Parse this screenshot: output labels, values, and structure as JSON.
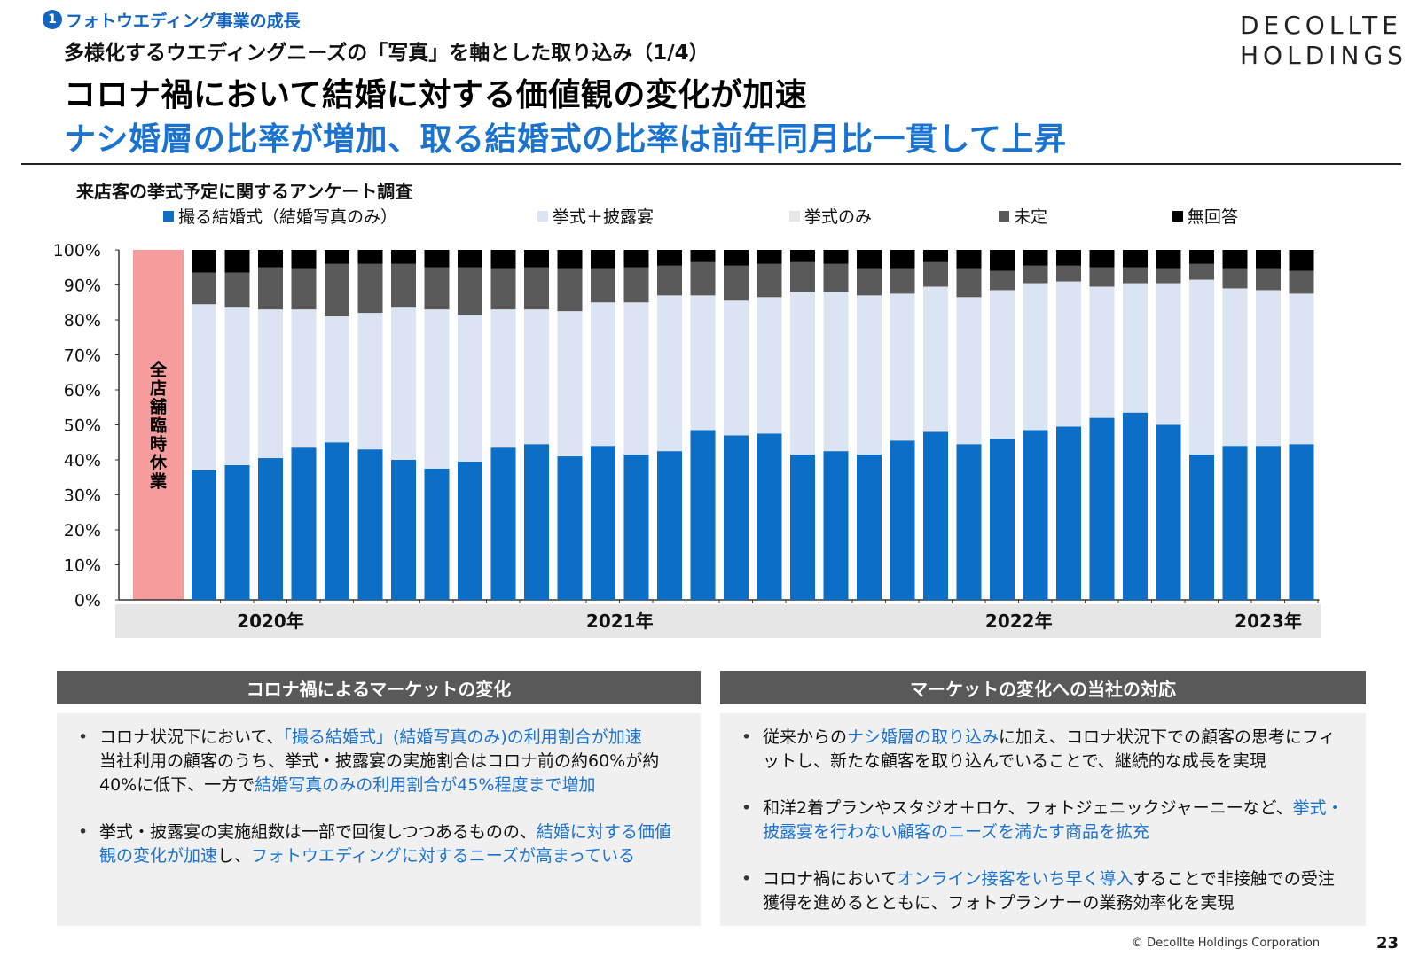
{
  "header": {
    "section_number": "1",
    "section_label": "フォトウエディング事業の成長",
    "subtitle": "多様化するウエディングニーズの「写真」を軸とした取り込み（1/4）",
    "headline": "コロナ禍において結婚に対する価値観の変化が加速",
    "headline_sub": "ナシ婚層の比率が増加、取る結婚式の比率は前年同月比一貫して上昇",
    "logo_line1": "DECOLLTE",
    "logo_line2": "HOLDINGS"
  },
  "chart_data": {
    "type": "bar",
    "stacked": true,
    "title": "来店客の挙式予定に関するアンケート調査",
    "y_ticks": [
      "0%",
      "10%",
      "20%",
      "30%",
      "40%",
      "50%",
      "60%",
      "70%",
      "80%",
      "90%",
      "100%"
    ],
    "ylim": [
      0,
      100
    ],
    "x_year_labels": [
      {
        "label": "2020年",
        "center_index": 2
      },
      {
        "label": "2021年",
        "center_index": 12.5
      },
      {
        "label": "2022年",
        "center_index": 24.5
      },
      {
        "label": "2023年",
        "center_index": 32
      }
    ],
    "closure_label": "全店舗臨時休業",
    "series": [
      {
        "name": "撮る結婚式（結婚写真のみ）",
        "color": "#0b6ec7",
        "values": [
          37,
          38.5,
          40.5,
          43.5,
          45,
          43,
          40,
          37.5,
          39.5,
          43.5,
          44.5,
          41,
          44,
          41.5,
          42.5,
          48.5,
          47,
          47.5,
          41.5,
          42.5,
          41.5,
          45.5,
          48,
          44.5,
          46,
          48.5,
          49.5,
          52,
          53.5,
          50,
          41.5,
          44,
          44,
          44.5
        ]
      },
      {
        "name": "挙式＋披露宴",
        "color": "#dbe4f3",
        "values": [
          47.5,
          45,
          42.5,
          39.5,
          36,
          39,
          43.5,
          45.5,
          42,
          39.5,
          38.5,
          41.5,
          41,
          43.5,
          44.5,
          38.5,
          38.5,
          39,
          46.5,
          45.5,
          45.5,
          42,
          41.5,
          42,
          42.5,
          42,
          41.5,
          37.5,
          37,
          40.5,
          50,
          45,
          44.5,
          43
        ]
      },
      {
        "name": "挙式のみ",
        "color": "#e8e8e8",
        "values": [
          0,
          0,
          0,
          0,
          0,
          0,
          0,
          0,
          0,
          0,
          0,
          0,
          0,
          0,
          0,
          0,
          0,
          0,
          0,
          0,
          0,
          0,
          0,
          0,
          0,
          0,
          0,
          0,
          0,
          0,
          0,
          0,
          0,
          0
        ]
      },
      {
        "name": "未定",
        "color": "#5a5a5a",
        "values": [
          9,
          10,
          12,
          11.5,
          15,
          14,
          12.5,
          12,
          13.5,
          11.5,
          12,
          12,
          9.5,
          10,
          8.5,
          9.5,
          10,
          9.5,
          8.5,
          8,
          7.5,
          7,
          7,
          8,
          5.5,
          5,
          4.5,
          5.5,
          4.5,
          4,
          4.5,
          5.5,
          6,
          6.5
        ]
      },
      {
        "name": "無回答",
        "color": "#000000",
        "values": [
          6.5,
          6.5,
          5,
          5.5,
          4,
          4,
          4,
          5,
          5,
          5.5,
          5,
          5.5,
          5.5,
          5,
          4.5,
          3.5,
          4.5,
          4,
          3.5,
          4,
          5.5,
          5.5,
          3.5,
          5.5,
          6,
          4.5,
          4.5,
          5,
          5,
          5.5,
          4,
          5.5,
          5.5,
          6
        ]
      }
    ]
  },
  "left_panel": {
    "title": "コロナ禍によるマーケットの変化",
    "b1_p1": "コロナ状況下において、",
    "b1_h1": "「撮る結婚式」(結婚写真のみ)の利用割合が加速",
    "b1_p2": "当社利用の顧客のうち、挙式・披露宴の実施割合はコロナ前の約60%が約40%に低下、一方で",
    "b1_h2": "結婚写真のみの利用割合が45%程度まで増加",
    "b2_p1": "挙式・披露宴の実施組数は一部で回復しつつあるものの、",
    "b2_h1": "結婚に対する価値観の変化が加速",
    "b2_p2": "し、",
    "b2_h2": "フォトウエディングに対するニーズが高まっている"
  },
  "right_panel": {
    "title": "マーケットの変化への当社の対応",
    "b1_p1": "従来からの",
    "b1_h1": "ナシ婚層の取り込み",
    "b1_p2": "に加え、コロナ状況下での顧客の思考にフィットし、新たな顧客を取り込んでいることで、継続的な成長を実現",
    "b2_p1": "和洋2着プランやスタジオ＋ロケ、フォトジェニックジャーニーなど、",
    "b2_h1": "挙式・披露宴を行わない顧客のニーズを満たす商品を拡充",
    "b3_p1": "コロナ禍において",
    "b3_h1": "オンライン接客をいち早く導入",
    "b3_p2": "することで非接触での受注獲得を進めるとともに、フォトプランナーの業務効率化を実現"
  },
  "footer": {
    "copyright": "© Decollte Holdings Corporation",
    "page_number": "23"
  }
}
